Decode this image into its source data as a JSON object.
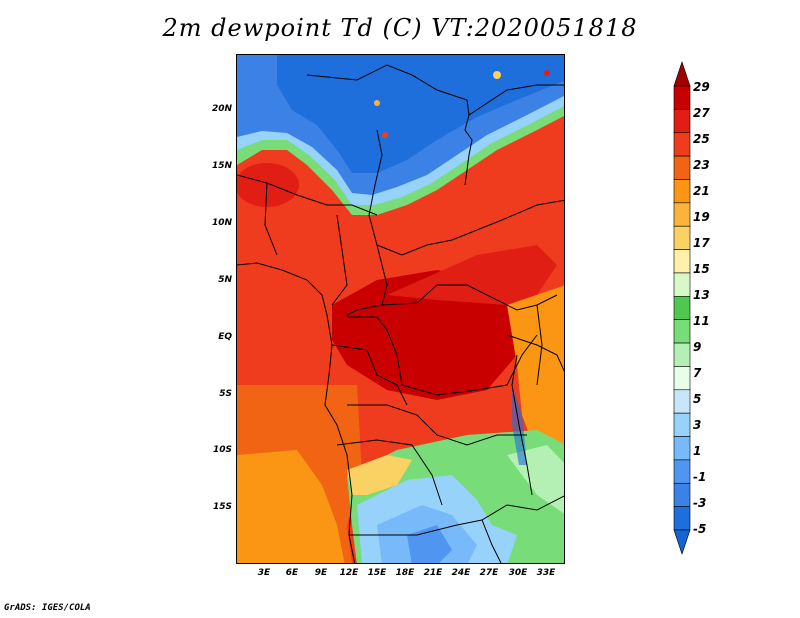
{
  "title": "2m dewpoint Td (C) VT:2020051818",
  "credit": "GrADS: IGES/COLA",
  "lat_labels": [
    "20N",
    "15N",
    "10N",
    "5N",
    "EQ",
    "5S",
    "10S",
    "15S"
  ],
  "lon_labels": [
    "3E",
    "6E",
    "9E",
    "12E",
    "15E",
    "18E",
    "21E",
    "24E",
    "27E",
    "30E",
    "33E"
  ],
  "colorbar": {
    "labels": [
      "29",
      "27",
      "25",
      "23",
      "21",
      "19",
      "17",
      "15",
      "13",
      "11",
      "9",
      "7",
      "5",
      "3",
      "1",
      "-1",
      "-3",
      "-5"
    ],
    "colors": [
      "#a00000",
      "#c80000",
      "#e11e14",
      "#f03c1e",
      "#f06414",
      "#fa9614",
      "#fab43c",
      "#fad264",
      "#fff0aa",
      "#d8f8c8",
      "#50c850",
      "#78dc78",
      "#b4f0b4",
      "#e6ffe6",
      "#c8e6fa",
      "#96d2fa",
      "#78b9fa",
      "#5096f0",
      "#3c82e6",
      "#1e6edc",
      "#1464d2"
    ]
  }
}
